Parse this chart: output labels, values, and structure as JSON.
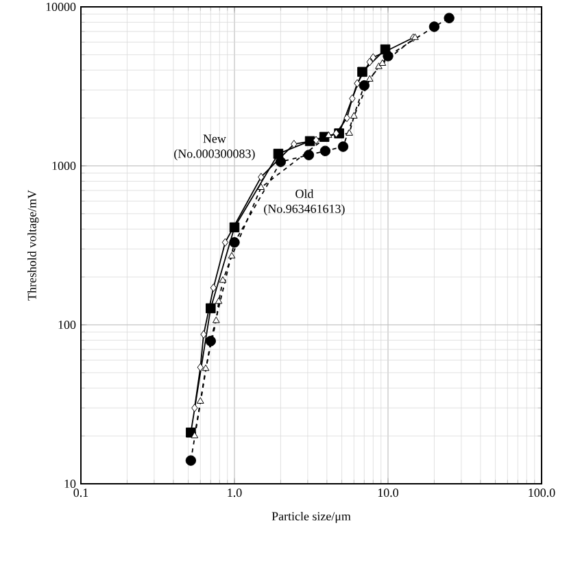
{
  "chart_data": {
    "type": "line",
    "xlabel": "Particle size/μm",
    "ylabel": "Threshold voltage/mV",
    "log": "xy",
    "grid": true,
    "xlim": [
      0.1,
      100
    ],
    "ylim": [
      10,
      10000
    ],
    "xticks": [
      0.1,
      {
        "value": 1,
        "label": "1.0"
      },
      {
        "value": 10,
        "label": "10.0"
      },
      {
        "value": 100,
        "label": "100.0"
      }
    ],
    "yticks": [
      10,
      100,
      1000,
      10000
    ],
    "series": [
      {
        "color": "#000000",
        "marker": "square",
        "line_style": "solid",
        "x": [
          0.52,
          0.7,
          1.0,
          1.93,
          3.1,
          3.85,
          4.8,
          6.8,
          9.6
        ],
        "values": [
          21,
          127,
          410,
          1190,
          1430,
          1520,
          1600,
          3900,
          5400
        ]
      },
      {
        "color": "#000000",
        "marker": "diamond",
        "line_style": "solid",
        "x": [
          0.55,
          0.6,
          0.63,
          0.73,
          0.87,
          1.49,
          2.44,
          3.4,
          4.6,
          5.4,
          5.85,
          6.3,
          7.6,
          8.0,
          14.6
        ],
        "values": [
          30,
          54,
          87,
          171,
          330,
          850,
          1370,
          1450,
          1600,
          2000,
          2650,
          3300,
          4500,
          4800,
          6400
        ]
      },
      {
        "color": "#000000",
        "marker": "circle",
        "line_style": "dashed",
        "x": [
          0.52,
          0.7,
          1.0,
          2.0,
          3.05,
          3.9,
          5.1,
          7.0,
          10,
          20,
          25
        ],
        "values": [
          14,
          79,
          330,
          1060,
          1170,
          1240,
          1320,
          3200,
          4900,
          7500,
          8500
        ]
      },
      {
        "color": "#000000",
        "marker": "triangle",
        "line_style": "dashed",
        "x": [
          0.55,
          0.6,
          0.65,
          0.76,
          0.79,
          0.84,
          0.96,
          1.49,
          4.1,
          5.6,
          6.0,
          7.6,
          8.7,
          9.2,
          15
        ],
        "values": [
          20,
          33,
          53,
          106,
          140,
          190,
          270,
          730,
          1550,
          1600,
          2050,
          3500,
          4200,
          4400,
          6400
        ]
      }
    ],
    "annotations": [
      "New (No.000300083)",
      "Old (No.963461613)"
    ]
  }
}
